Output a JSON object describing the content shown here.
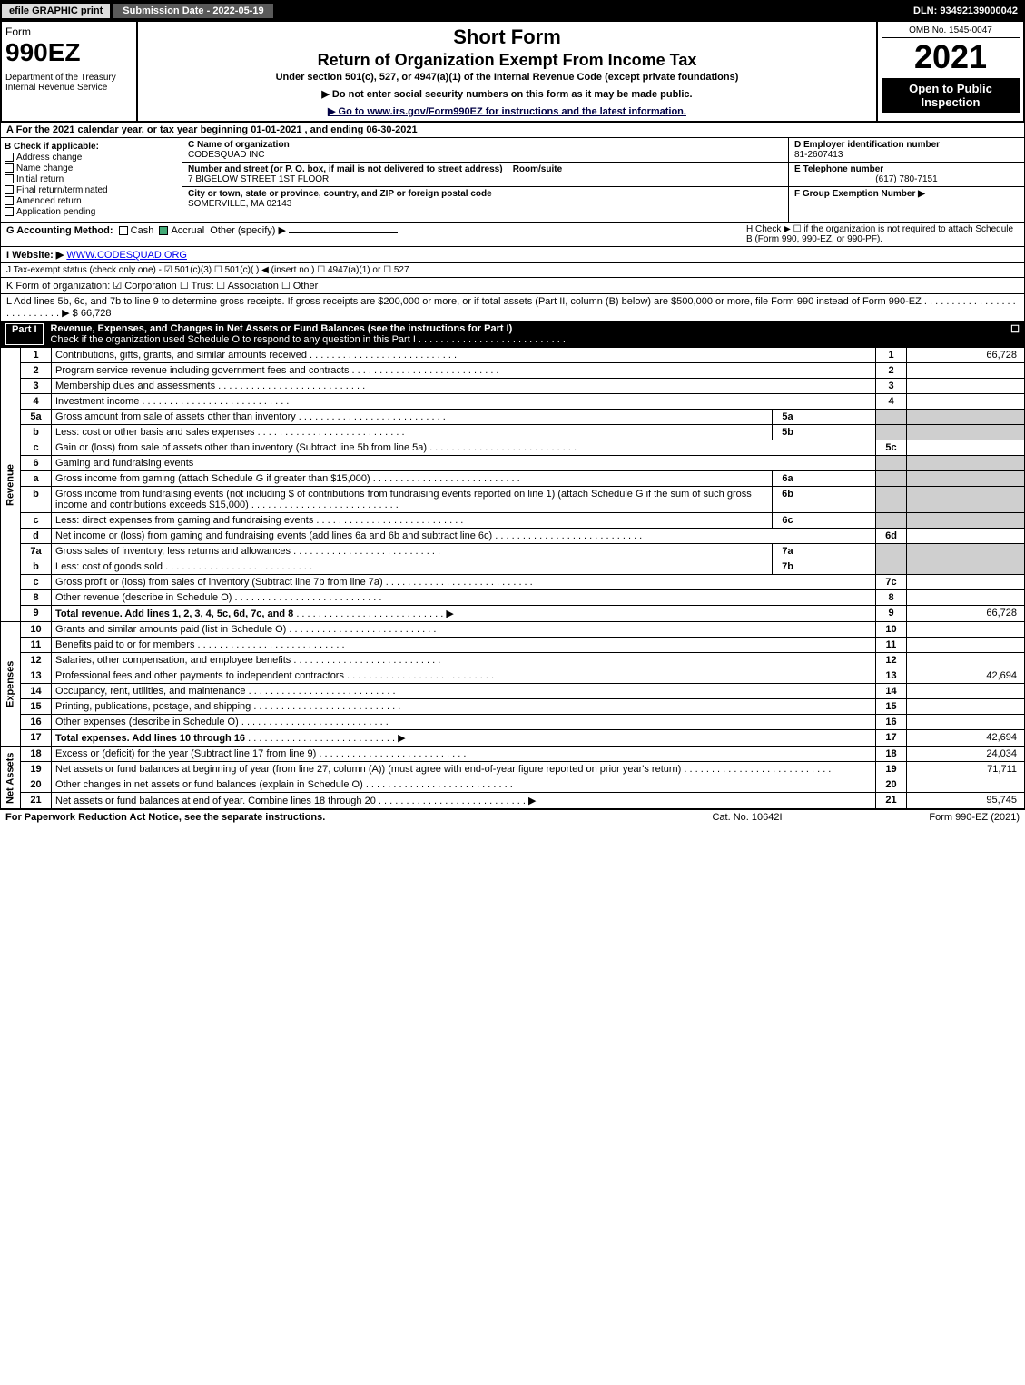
{
  "topbar": {
    "efile": "efile GRAPHIC print",
    "submission": "Submission Date - 2022-05-19",
    "dln": "DLN: 93492139000042"
  },
  "header": {
    "form_word": "Form",
    "form_num": "990EZ",
    "dept": "Department of the Treasury\nInternal Revenue Service",
    "short": "Short Form",
    "title": "Return of Organization Exempt From Income Tax",
    "under": "Under section 501(c), 527, or 4947(a)(1) of the Internal Revenue Code (except private foundations)",
    "ssn": "▶ Do not enter social security numbers on this form as it may be made public.",
    "goto": "▶ Go to www.irs.gov/Form990EZ for instructions and the latest information.",
    "omb": "OMB No. 1545-0047",
    "year": "2021",
    "open": "Open to Public Inspection"
  },
  "a": "A  For the 2021 calendar year, or tax year beginning 01-01-2021 , and ending 06-30-2021",
  "b": {
    "hdr": "B  Check if applicable:",
    "items": [
      "Address change",
      "Name change",
      "Initial return",
      "Final return/terminated",
      "Amended return",
      "Application pending"
    ]
  },
  "c": {
    "name_hdr": "C Name of organization",
    "name": "CODESQUAD INC",
    "street_hdr": "Number and street (or P. O. box, if mail is not delivered to street address)",
    "room_hdr": "Room/suite",
    "street": "7 BIGELOW STREET 1ST FLOOR",
    "city_hdr": "City or town, state or province, country, and ZIP or foreign postal code",
    "city": "SOMERVILLE, MA  02143"
  },
  "d": {
    "ein_hdr": "D Employer identification number",
    "ein": "81-2607413",
    "tel_hdr": "E Telephone number",
    "tel": "(617) 780-7151",
    "grp_hdr": "F Group Exemption Number  ▶"
  },
  "g": {
    "label": "G Accounting Method:",
    "cash": "Cash",
    "accrual": "Accrual",
    "other": "Other (specify) ▶",
    "h": "H  Check ▶  ☐  if the organization is not required to attach Schedule B (Form 990, 990-EZ, or 990-PF)."
  },
  "i": {
    "label": "I Website: ▶",
    "val": "WWW.CODESQUAD.ORG"
  },
  "j": "J Tax-exempt status (check only one) - ☑ 501(c)(3)  ☐ 501(c)(  ) ◀ (insert no.)  ☐ 4947(a)(1) or  ☐ 527",
  "k": "K Form of organization:  ☑ Corporation  ☐ Trust  ☐ Association  ☐ Other",
  "l": {
    "text": "L Add lines 5b, 6c, and 7b to line 9 to determine gross receipts. If gross receipts are $200,000 or more, or if total assets (Part II, column (B) below) are $500,000 or more, file Form 990 instead of Form 990-EZ",
    "arrow": "▶ $",
    "val": "66,728"
  },
  "part1": {
    "num": "Part I",
    "title": "Revenue, Expenses, and Changes in Net Assets or Fund Balances (see the instructions for Part I)",
    "check": "Check if the organization used Schedule O to respond to any question in this Part I",
    "box": "☐"
  },
  "lines": {
    "revenue_label": "Revenue",
    "expenses_label": "Expenses",
    "netassets_label": "Net Assets",
    "r": [
      {
        "n": "1",
        "d": "Contributions, gifts, grants, and similar amounts received",
        "rn": "1",
        "v": "66,728"
      },
      {
        "n": "2",
        "d": "Program service revenue including government fees and contracts",
        "rn": "2",
        "v": ""
      },
      {
        "n": "3",
        "d": "Membership dues and assessments",
        "rn": "3",
        "v": ""
      },
      {
        "n": "4",
        "d": "Investment income",
        "rn": "4",
        "v": ""
      },
      {
        "n": "5a",
        "d": "Gross amount from sale of assets other than inventory",
        "sn": "5a",
        "sv": "",
        "shade": true
      },
      {
        "n": "b",
        "d": "Less: cost or other basis and sales expenses",
        "sn": "5b",
        "sv": "",
        "shade": true
      },
      {
        "n": "c",
        "d": "Gain or (loss) from sale of assets other than inventory (Subtract line 5b from line 5a)",
        "rn": "5c",
        "v": ""
      },
      {
        "n": "6",
        "d": "Gaming and fundraising events",
        "shade": true,
        "noright": true
      },
      {
        "n": "a",
        "d": "Gross income from gaming (attach Schedule G if greater than $15,000)",
        "sn": "6a",
        "sv": "",
        "shade": true
      },
      {
        "n": "b",
        "d": "Gross income from fundraising events (not including $                    of contributions from fundraising events reported on line 1) (attach Schedule G if the sum of such gross income and contributions exceeds $15,000)",
        "sn": "6b",
        "sv": "",
        "shade": true
      },
      {
        "n": "c",
        "d": "Less: direct expenses from gaming and fundraising events",
        "sn": "6c",
        "sv": "",
        "shade": true
      },
      {
        "n": "d",
        "d": "Net income or (loss) from gaming and fundraising events (add lines 6a and 6b and subtract line 6c)",
        "rn": "6d",
        "v": ""
      },
      {
        "n": "7a",
        "d": "Gross sales of inventory, less returns and allowances",
        "sn": "7a",
        "sv": "",
        "shade": true
      },
      {
        "n": "b",
        "d": "Less: cost of goods sold",
        "sn": "7b",
        "sv": "",
        "shade": true
      },
      {
        "n": "c",
        "d": "Gross profit or (loss) from sales of inventory (Subtract line 7b from line 7a)",
        "rn": "7c",
        "v": ""
      },
      {
        "n": "8",
        "d": "Other revenue (describe in Schedule O)",
        "rn": "8",
        "v": ""
      },
      {
        "n": "9",
        "d": "Total revenue. Add lines 1, 2, 3, 4, 5c, 6d, 7c, and 8",
        "rn": "9",
        "v": "66,728",
        "bold": true,
        "arrow": true
      }
    ],
    "e": [
      {
        "n": "10",
        "d": "Grants and similar amounts paid (list in Schedule O)",
        "rn": "10",
        "v": ""
      },
      {
        "n": "11",
        "d": "Benefits paid to or for members",
        "rn": "11",
        "v": ""
      },
      {
        "n": "12",
        "d": "Salaries, other compensation, and employee benefits",
        "rn": "12",
        "v": ""
      },
      {
        "n": "13",
        "d": "Professional fees and other payments to independent contractors",
        "rn": "13",
        "v": "42,694"
      },
      {
        "n": "14",
        "d": "Occupancy, rent, utilities, and maintenance",
        "rn": "14",
        "v": ""
      },
      {
        "n": "15",
        "d": "Printing, publications, postage, and shipping",
        "rn": "15",
        "v": ""
      },
      {
        "n": "16",
        "d": "Other expenses (describe in Schedule O)",
        "rn": "16",
        "v": ""
      },
      {
        "n": "17",
        "d": "Total expenses. Add lines 10 through 16",
        "rn": "17",
        "v": "42,694",
        "bold": true,
        "arrow": true
      }
    ],
    "na": [
      {
        "n": "18",
        "d": "Excess or (deficit) for the year (Subtract line 17 from line 9)",
        "rn": "18",
        "v": "24,034"
      },
      {
        "n": "19",
        "d": "Net assets or fund balances at beginning of year (from line 27, column (A)) (must agree with end-of-year figure reported on prior year's return)",
        "rn": "19",
        "v": "71,711"
      },
      {
        "n": "20",
        "d": "Other changes in net assets or fund balances (explain in Schedule O)",
        "rn": "20",
        "v": ""
      },
      {
        "n": "21",
        "d": "Net assets or fund balances at end of year. Combine lines 18 through 20",
        "rn": "21",
        "v": "95,745",
        "arrow": true
      }
    ]
  },
  "footer": {
    "l": "For Paperwork Reduction Act Notice, see the separate instructions.",
    "m": "Cat. No. 10642I",
    "r": "Form 990-EZ (2021)"
  }
}
